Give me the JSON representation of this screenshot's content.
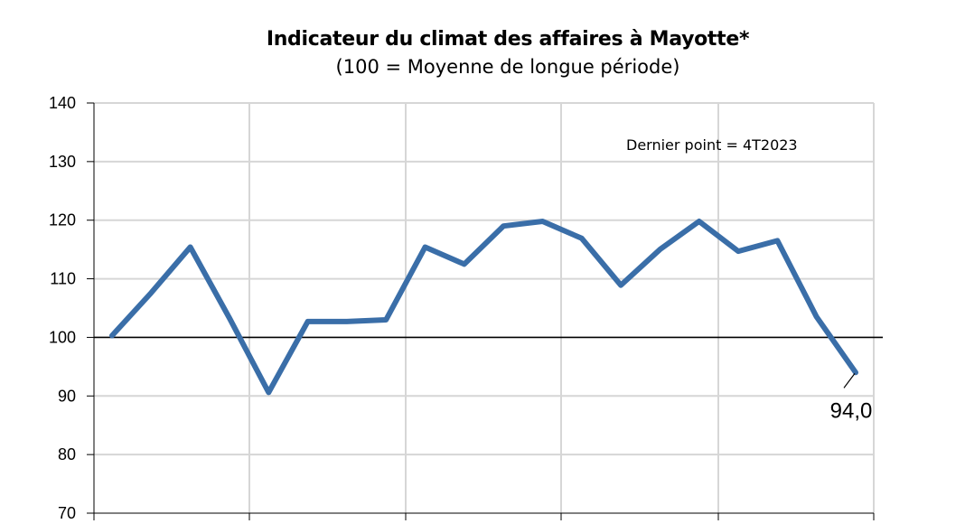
{
  "chart_data": {
    "type": "line",
    "title": "Indicateur du climat des affaires à Mayotte*",
    "subtitle": "(100 = Moyenne de longue période)",
    "xlabel": "",
    "ylabel": "",
    "ylim": [
      70,
      140
    ],
    "yticks": [
      70,
      80,
      90,
      100,
      110,
      120,
      130,
      140
    ],
    "x_tick_labels": [],
    "reference_line": 100,
    "grid": true,
    "annotation": "Dernier point  = 4T2023",
    "last_value_label": "94,0",
    "series": [
      {
        "color": "#3a6ea8",
        "values": [
          100.3,
          107.6,
          115.4,
          103.3,
          90.6,
          102.7,
          102.7,
          103.0,
          115.4,
          112.5,
          119.0,
          119.8,
          116.9,
          108.9,
          115.0,
          119.8,
          114.7,
          116.5,
          103.5,
          94.0
        ]
      }
    ]
  }
}
